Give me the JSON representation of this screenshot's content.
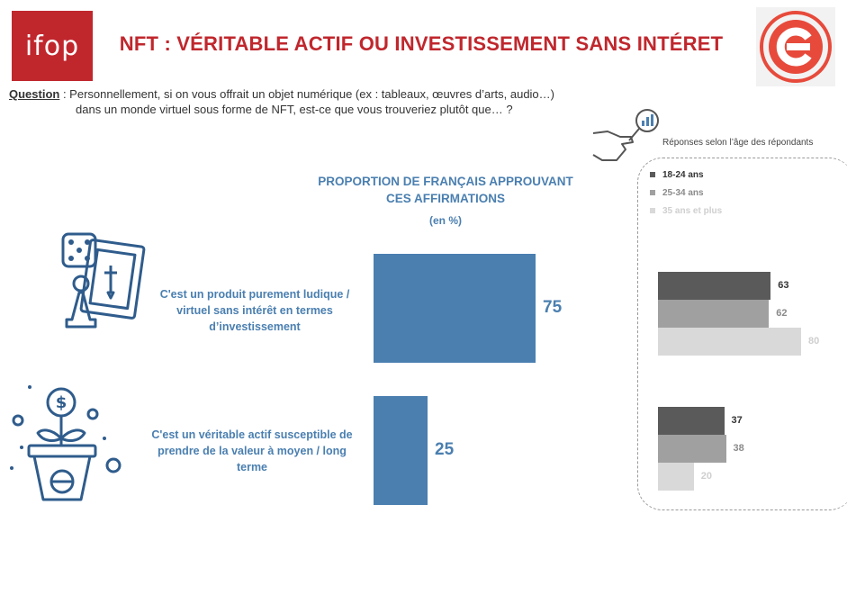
{
  "header": {
    "logo_text": "ifop",
    "title": "NFT : VÉRITABLE ACTIF OU INVESTISSEMENT SANS INTÉRET"
  },
  "question": {
    "label": "Question",
    "line1": " : Personnellement, si on vous offrait un objet numérique (ex : tableaux, œuvres d’arts, audio…)",
    "line2": "dans un monde virtuel sous forme de NFT, est-ce que vous trouveriez plutôt que… ?"
  },
  "chart_data": [
    {
      "type": "bar",
      "orientation": "vertical",
      "title": "PROPORTION DE FRANÇAIS APPROUVANT CES AFFIRMATIONS",
      "title_lines": [
        "PROPORTION DE FRANÇAIS APPROUVANT",
        "CES AFFIRMATIONS"
      ],
      "subtitle": "(en %)",
      "categories": [
        "C'est un produit purement ludique / virtuel sans intérêt en termes d’investissement",
        "C'est un véritable actif susceptible de prendre de la valeur à moyen / long terme"
      ],
      "category_lines": [
        [
          "C'est un produit purement ludique /",
          "virtuel sans intérêt en termes",
          "d’investissement"
        ],
        [
          "C'est un véritable actif susceptible de",
          "prendre de la valeur à moyen / long",
          "terme"
        ]
      ],
      "values": [
        75,
        25
      ],
      "color": "#4a7fb0"
    },
    {
      "type": "bar",
      "orientation": "horizontal",
      "title": "Réponses selon l’âge des répondants",
      "legend_placement": "top",
      "series": [
        {
          "name": "18-24 ans",
          "color": "#5a5a5a",
          "label_color": "#333333",
          "values": [
            63,
            37
          ]
        },
        {
          "name": "25-34 ans",
          "color": "#a0a0a0",
          "label_color": "#8a8a8a",
          "values": [
            62,
            38
          ]
        },
        {
          "name": "35 ans et plus",
          "color": "#d9d9d9",
          "label_color": "#cfcfcf",
          "values": [
            80,
            20
          ]
        }
      ]
    }
  ],
  "icons": {
    "top_right_logo": "red-c-logo-icon",
    "row1": "dice-pawn-card-icon",
    "row2": "dollar-plant-pot-icon",
    "panel": "hand-magnifier-chart-icon"
  }
}
